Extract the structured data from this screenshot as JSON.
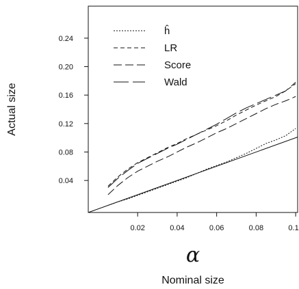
{
  "chart_data": {
    "type": "line",
    "title": "",
    "xlabel": "Nominal size",
    "xlabel_symbol": "α",
    "ylabel": "Actual size",
    "xlim": [
      -0.005,
      0.101
    ],
    "ylim": [
      -0.005,
      0.285
    ],
    "xticks": [
      0.02,
      0.04,
      0.06,
      0.08,
      0.1
    ],
    "xtick_labels": [
      "0.02",
      "0.04",
      "0.06",
      "0.08",
      "0.10"
    ],
    "yticks": [
      0.04,
      0.08,
      0.12,
      0.16,
      0.2,
      0.24
    ],
    "ytick_labels": [
      "0.04",
      "0.08",
      "0.12",
      "0.16",
      "0.20",
      "0.24"
    ],
    "grid": false,
    "legend_position": "top-left",
    "reference_line": {
      "x": [
        -0.005,
        0.101
      ],
      "y": [
        -0.005,
        0.101
      ]
    },
    "x": [
      0.005,
      0.01,
      0.015,
      0.02,
      0.025,
      0.03,
      0.035,
      0.04,
      0.045,
      0.05,
      0.055,
      0.06,
      0.065,
      0.07,
      0.075,
      0.08,
      0.085,
      0.09,
      0.095,
      0.1
    ],
    "series": [
      {
        "name": "ĥ",
        "dash": "2,2",
        "values": [
          0.005,
          0.01,
          0.014,
          0.019,
          0.024,
          0.029,
          0.034,
          0.039,
          0.044,
          0.05,
          0.056,
          0.061,
          0.066,
          0.072,
          0.078,
          0.085,
          0.092,
          0.097,
          0.103,
          0.113
        ]
      },
      {
        "name": "LR",
        "dash": "6,4",
        "values": [
          0.032,
          0.045,
          0.056,
          0.065,
          0.072,
          0.079,
          0.086,
          0.092,
          0.099,
          0.105,
          0.111,
          0.117,
          0.124,
          0.132,
          0.139,
          0.146,
          0.152,
          0.158,
          0.166,
          0.176
        ]
      },
      {
        "name": "Score",
        "dash": "12,5",
        "values": [
          0.02,
          0.033,
          0.044,
          0.053,
          0.06,
          0.067,
          0.073,
          0.08,
          0.087,
          0.093,
          0.1,
          0.107,
          0.113,
          0.12,
          0.127,
          0.134,
          0.141,
          0.147,
          0.152,
          0.158
        ]
      },
      {
        "name": "Wald",
        "dash": "22,6",
        "values": [
          0.03,
          0.043,
          0.054,
          0.064,
          0.071,
          0.078,
          0.085,
          0.091,
          0.098,
          0.105,
          0.112,
          0.119,
          0.127,
          0.135,
          0.142,
          0.148,
          0.154,
          0.16,
          0.166,
          0.178
        ]
      }
    ]
  }
}
